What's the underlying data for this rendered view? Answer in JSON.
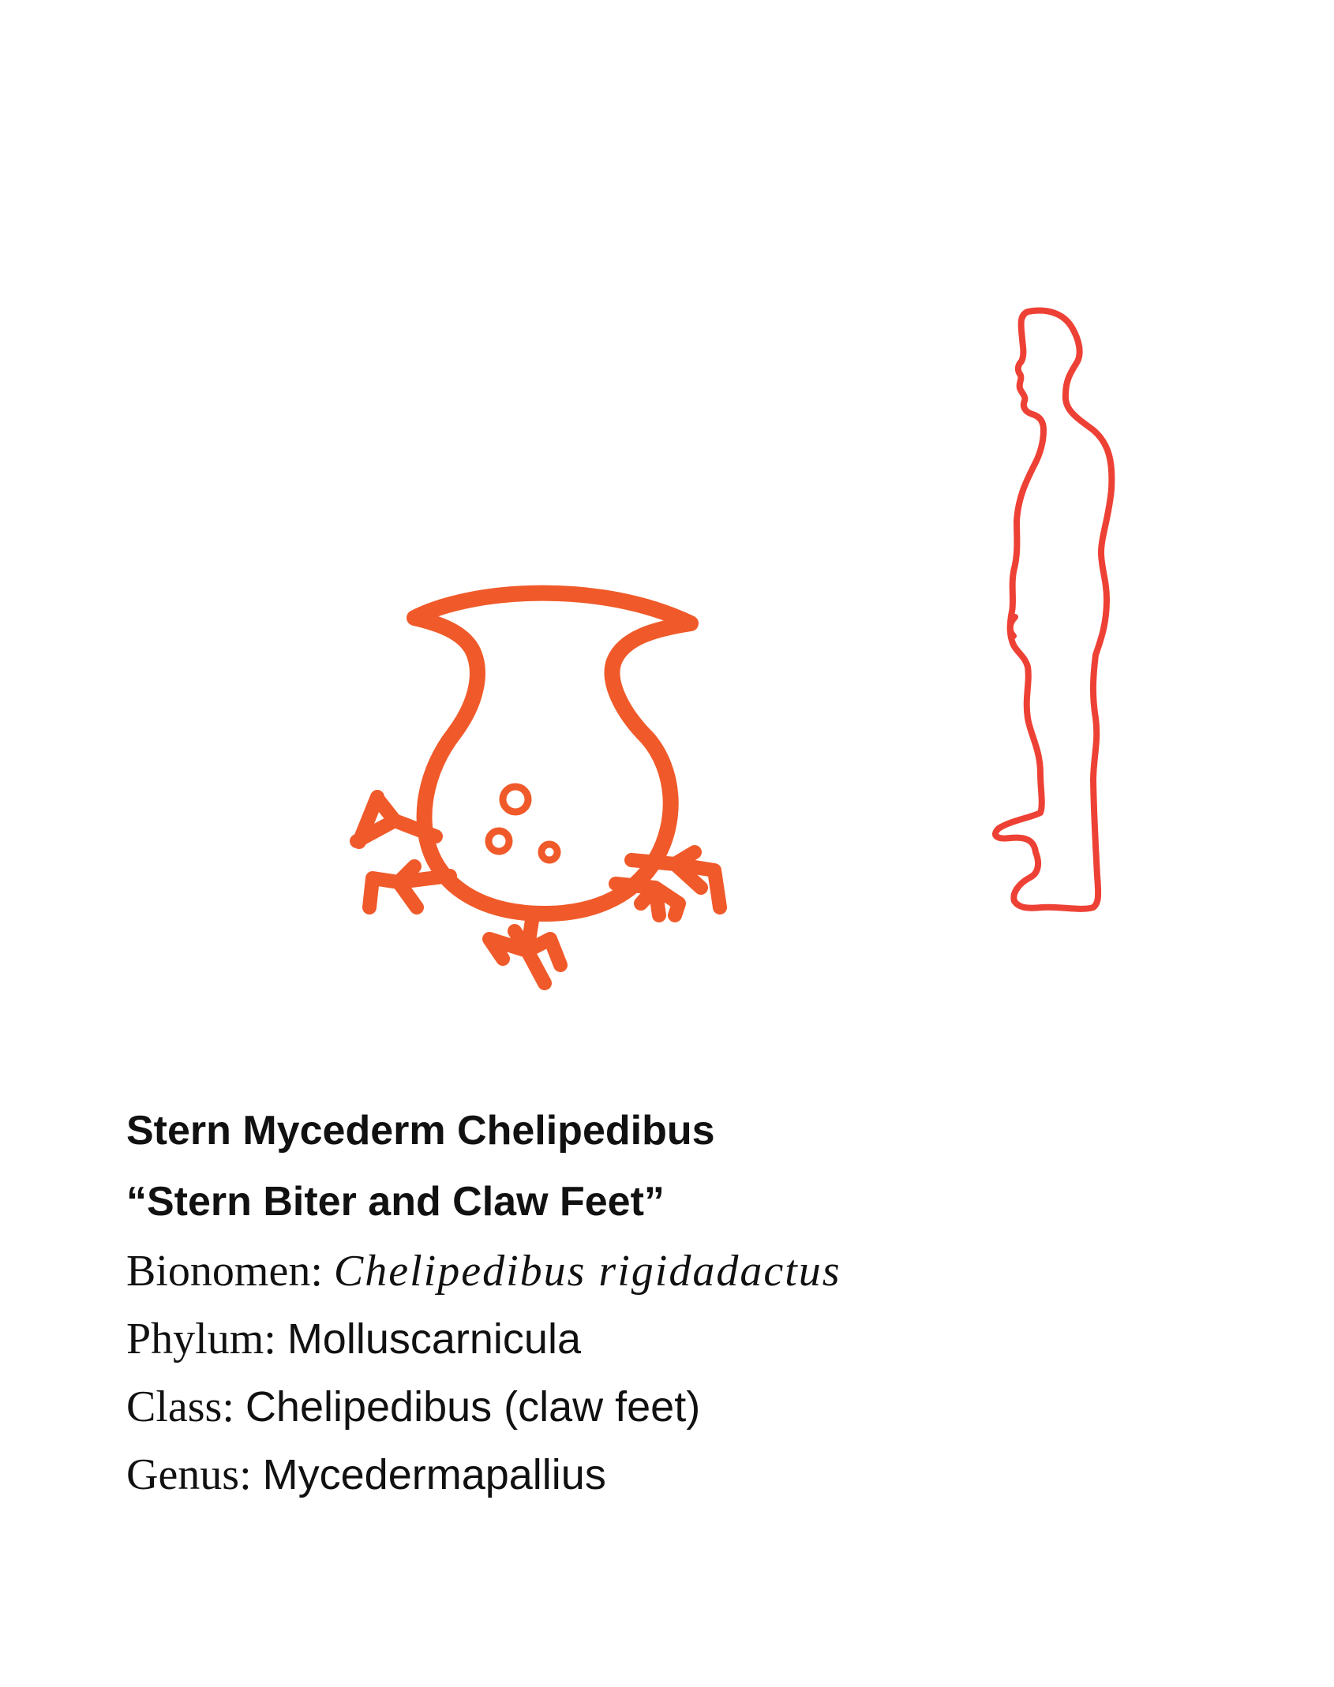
{
  "colors": {
    "creature": "#f05a2a",
    "human": "#ee4135",
    "text": "#111111",
    "background": "#ffffff"
  },
  "figure": {
    "creature_icon": "claw-footed-creature",
    "human_icon": "standing-human-silhouette"
  },
  "caption": {
    "title": "Stern Mycederm Chelipedibus",
    "common_name": "“Stern Biter and Claw Feet”",
    "facts": [
      {
        "label": "Bionomen: ",
        "value": "Chelipedibus rigidadactus"
      },
      {
        "label": "Phylum: ",
        "value": "Molluscarnicula"
      },
      {
        "label": "Class: ",
        "value": "Chelipedibus (claw feet)"
      },
      {
        "label": "Genus: ",
        "value": "Mycedermapallius"
      }
    ]
  }
}
